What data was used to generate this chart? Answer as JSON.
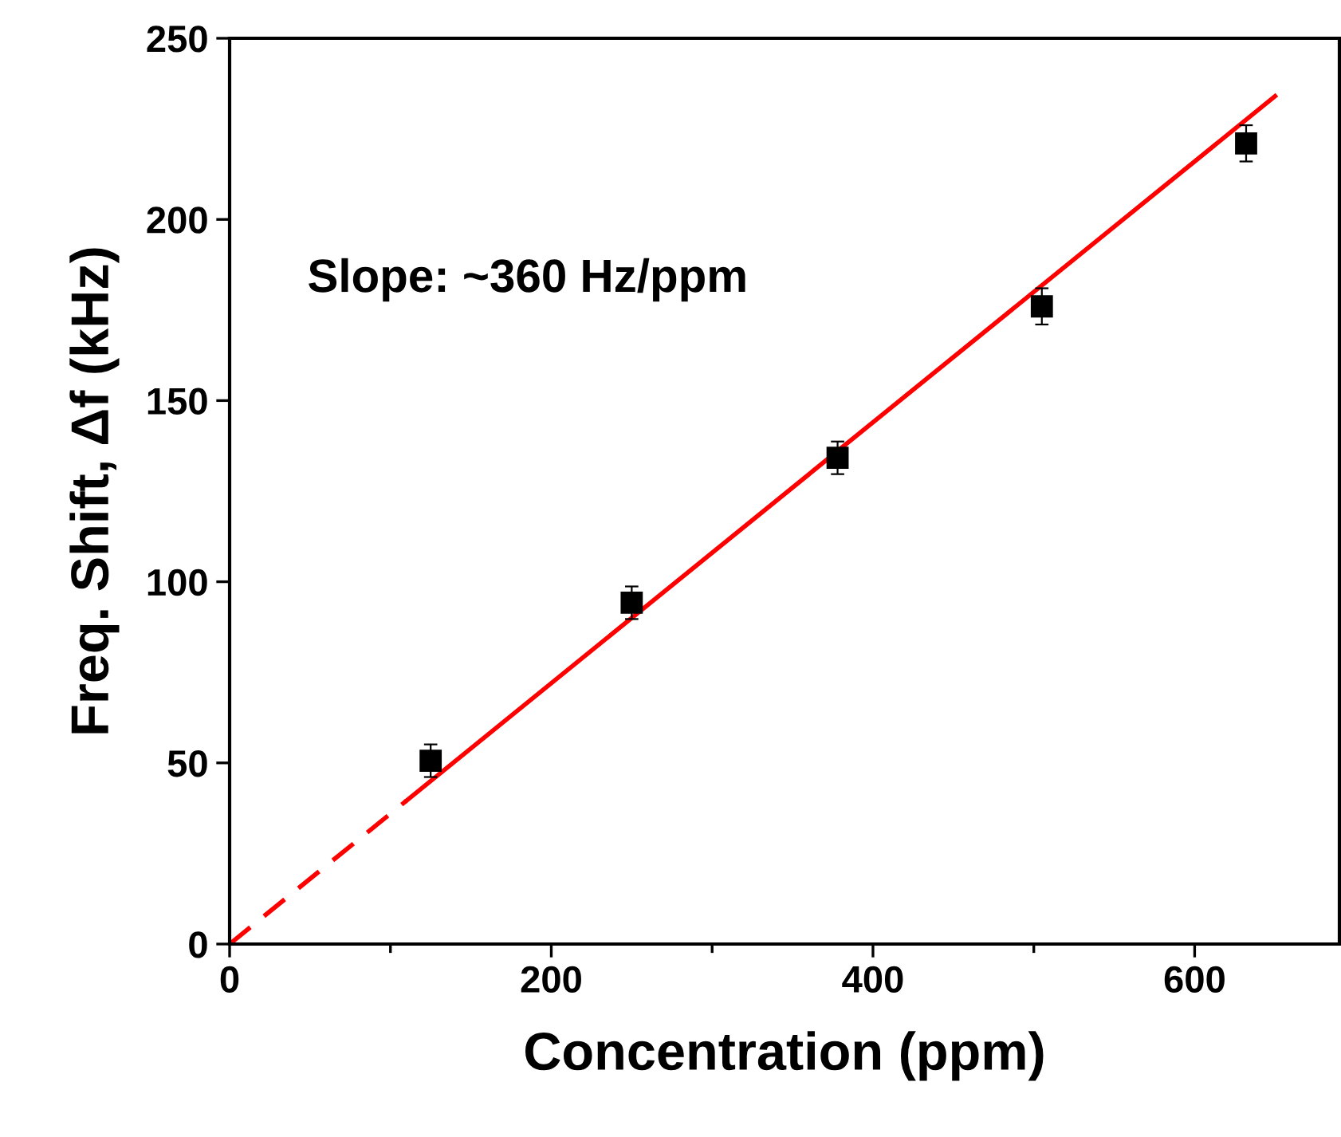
{
  "chart_data": {
    "type": "scatter",
    "xlabel": "Concentration (ppm)",
    "ylabel": "Freq. Shift, Δf (kHz)",
    "annotations": [
      "Slope: ~360 Hz/ppm"
    ],
    "xlim": [
      0,
      690
    ],
    "xticks": [
      0,
      {
        "value": 100,
        "label": null
      },
      200,
      {
        "value": 300,
        "label": null
      },
      400,
      {
        "value": 500,
        "label": null
      },
      600
    ],
    "ylim": [
      0,
      250
    ],
    "yticks": [
      0,
      50,
      100,
      150,
      200,
      250
    ],
    "grid": false,
    "legend": false,
    "series": [
      {
        "color": "#000000",
        "marker": "square",
        "x": [
          125,
          250,
          378,
          505,
          632
        ],
        "values": [
          50.6,
          94.2,
          134.2,
          176,
          221
        ],
        "errors": [
          4.5,
          4.5,
          4.5,
          5,
          5
        ]
      },
      {
        "type": "line",
        "color": "#ff0000",
        "marker": "none",
        "line_style": "dashed",
        "x": [
          0,
          110
        ],
        "values": [
          0,
          39.6
        ]
      },
      {
        "type": "line",
        "color": "#ff0000",
        "marker": "none",
        "line_style": "solid",
        "x": [
          110,
          650
        ],
        "values": [
          39.6,
          234
        ]
      }
    ]
  }
}
